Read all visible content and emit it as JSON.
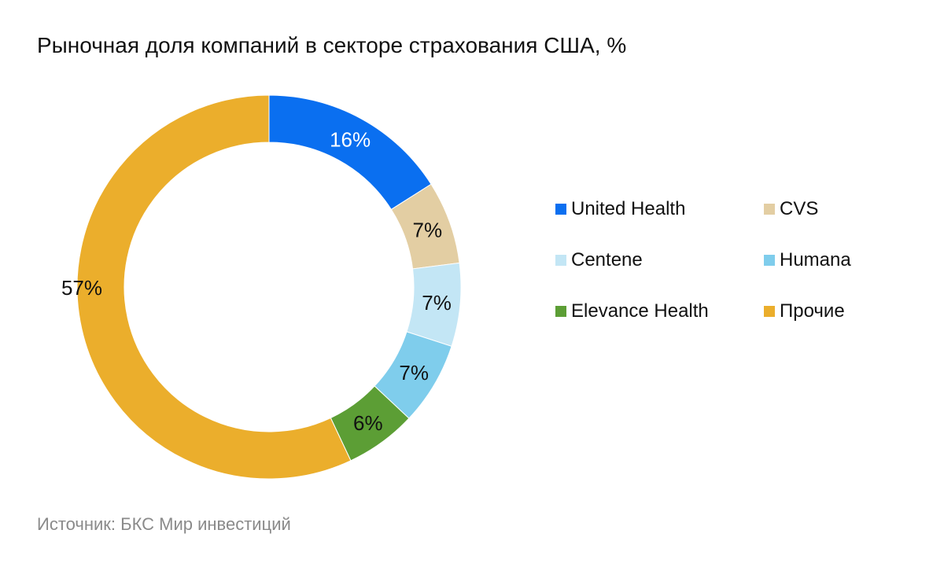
{
  "chart_data": {
    "type": "pie",
    "variant": "donut",
    "title": "Рыночная доля компаний в секторе страхования США, %",
    "categories": [
      "United Health",
      "CVS",
      "Centene",
      "Humana",
      "Elevance Health",
      "Прочие"
    ],
    "values": [
      16,
      7,
      7,
      7,
      6,
      57
    ],
    "labels": [
      "16%",
      "7%",
      "7%",
      "7%",
      "6%",
      "57%"
    ],
    "colors": [
      "#0a6ff0",
      "#e3cea3",
      "#c3e6f5",
      "#7fcdec",
      "#5c9e35",
      "#ebae2c"
    ],
    "label_colors": [
      "#ffffff",
      "#111111",
      "#111111",
      "#111111",
      "#111111",
      "#111111"
    ],
    "legend_position": "right",
    "start_angle_deg": 0,
    "direction": "clockwise"
  },
  "source": "Источник: БКС Мир инвестиций"
}
